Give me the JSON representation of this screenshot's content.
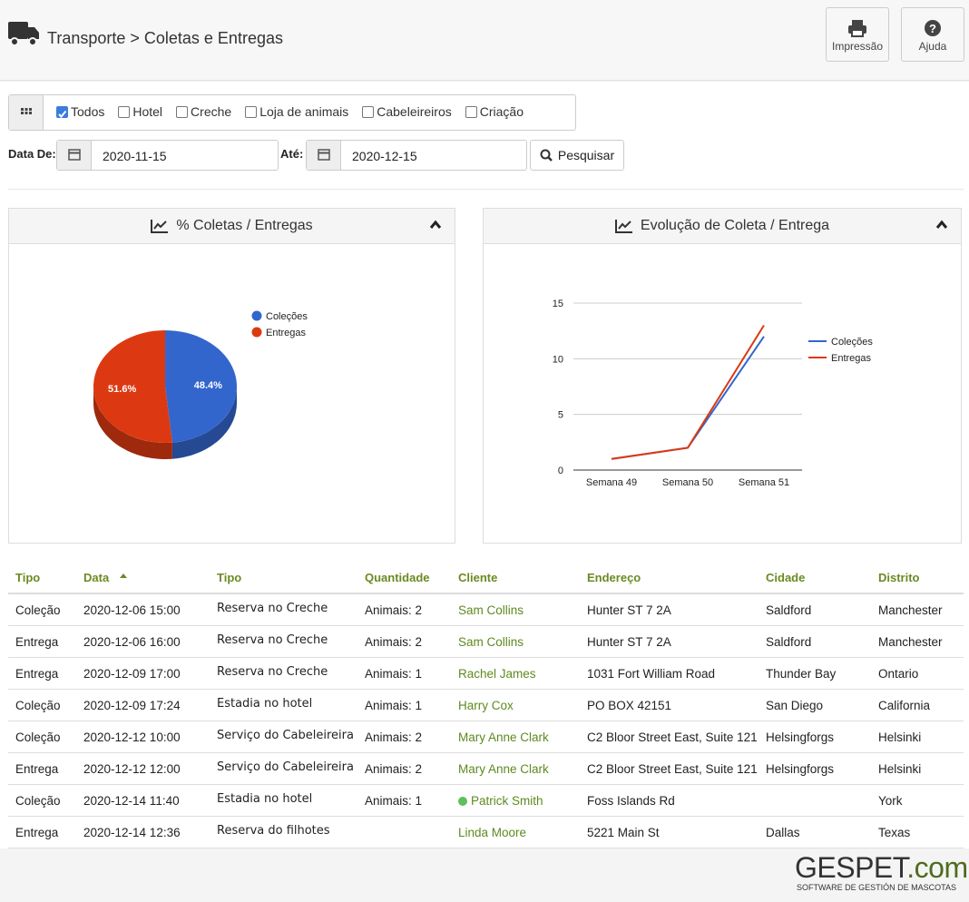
{
  "header": {
    "title": "Transporte > Coletas e Entregas",
    "buttons": [
      "Impressão",
      "Ajuda"
    ]
  },
  "filters": [
    {
      "label": "Todos",
      "checked": true
    },
    {
      "label": "Hotel",
      "checked": false
    },
    {
      "label": "Creche",
      "checked": false
    },
    {
      "label": "Loja de animais",
      "checked": false
    },
    {
      "label": "Cabeleireiros",
      "checked": false
    },
    {
      "label": "Criação",
      "checked": false
    }
  ],
  "date_from": {
    "label": "Data De:",
    "value": "2020-11-15"
  },
  "date_to": {
    "label": "Até:",
    "value": "2020-12-15"
  },
  "search_button": "Pesquisar",
  "chart_data": [
    {
      "type": "pie",
      "title": "% Coletas / Entregas",
      "categories": [
        "Coleções",
        "Entregas"
      ],
      "values": [
        48.4,
        51.6
      ],
      "value_labels": [
        "48.4%",
        "51.6%"
      ],
      "colors": [
        "#3366cc",
        "#dc3912"
      ],
      "legend": "right"
    },
    {
      "type": "line",
      "title": "Evolução de Coleta / Entrega",
      "categories": [
        "Semana 49",
        "Semana 50",
        "Semana 51"
      ],
      "series": [
        {
          "name": "Coleções",
          "color": "#3366cc",
          "values": [
            1,
            2,
            12
          ]
        },
        {
          "name": "Entregas",
          "color": "#dc3912",
          "values": [
            1,
            2,
            13
          ]
        }
      ],
      "ylim": [
        0,
        15
      ],
      "yticks": [
        0,
        5,
        10,
        15
      ],
      "grid": true,
      "legend": "right"
    }
  ],
  "table": {
    "columns": [
      "Tipo",
      "Data",
      "Tipo",
      "Quantidade",
      "Cliente",
      "Endereço",
      "Cidade",
      "Distrito"
    ],
    "rows": [
      [
        "Coleção",
        "2020-12-06 15:00",
        "Reserva no Creche",
        "Animais: 2",
        "Sam Collins",
        "Hunter ST 7 2A",
        "Saldford",
        "Manchester"
      ],
      [
        "Entrega",
        "2020-12-06 16:00",
        "Reserva no Creche",
        "Animais: 2",
        "Sam Collins",
        "Hunter ST 7 2A",
        "Saldford",
        "Manchester"
      ],
      [
        "Entrega",
        "2020-12-09 17:00",
        "Reserva no Creche",
        "Animais: 1",
        "Rachel James",
        "1031 Fort William Road",
        "Thunder Bay",
        "Ontario"
      ],
      [
        "Coleção",
        "2020-12-09 17:24",
        "Estadia no hotel",
        "Animais: 1",
        "Harry Cox",
        "PO BOX 42151",
        "San Diego",
        "California"
      ],
      [
        "Coleção",
        "2020-12-12 10:00",
        "Serviço do Cabeleireira",
        "Animais: 2",
        "Mary Anne Clark",
        "C2 Bloor Street East, Suite 121",
        "Helsingforgs",
        "Helsinki"
      ],
      [
        "Entrega",
        "2020-12-12 12:00",
        "Serviço do Cabeleireira",
        "Animais: 2",
        "Mary Anne Clark",
        "C2 Bloor Street East, Suite 121",
        "Helsingforgs",
        "Helsinki"
      ],
      [
        "Coleção",
        "2020-12-14 11:40",
        "Estadia no hotel",
        "Animais: 1",
        "Patrick Smith",
        "Foss Islands Rd",
        null,
        "York"
      ],
      [
        "Entrega",
        "2020-12-14 12:36",
        "Reserva do filhotes",
        null,
        "Linda Moore",
        "5221 Main St",
        "Dallas",
        "Texas"
      ]
    ],
    "active_client_rows": [
      6
    ]
  },
  "footer": {
    "logo": [
      "GESPET",
      ".com"
    ],
    "tagline": "SOFTWARE DE GESTIÓN DE MASCOTAS"
  }
}
